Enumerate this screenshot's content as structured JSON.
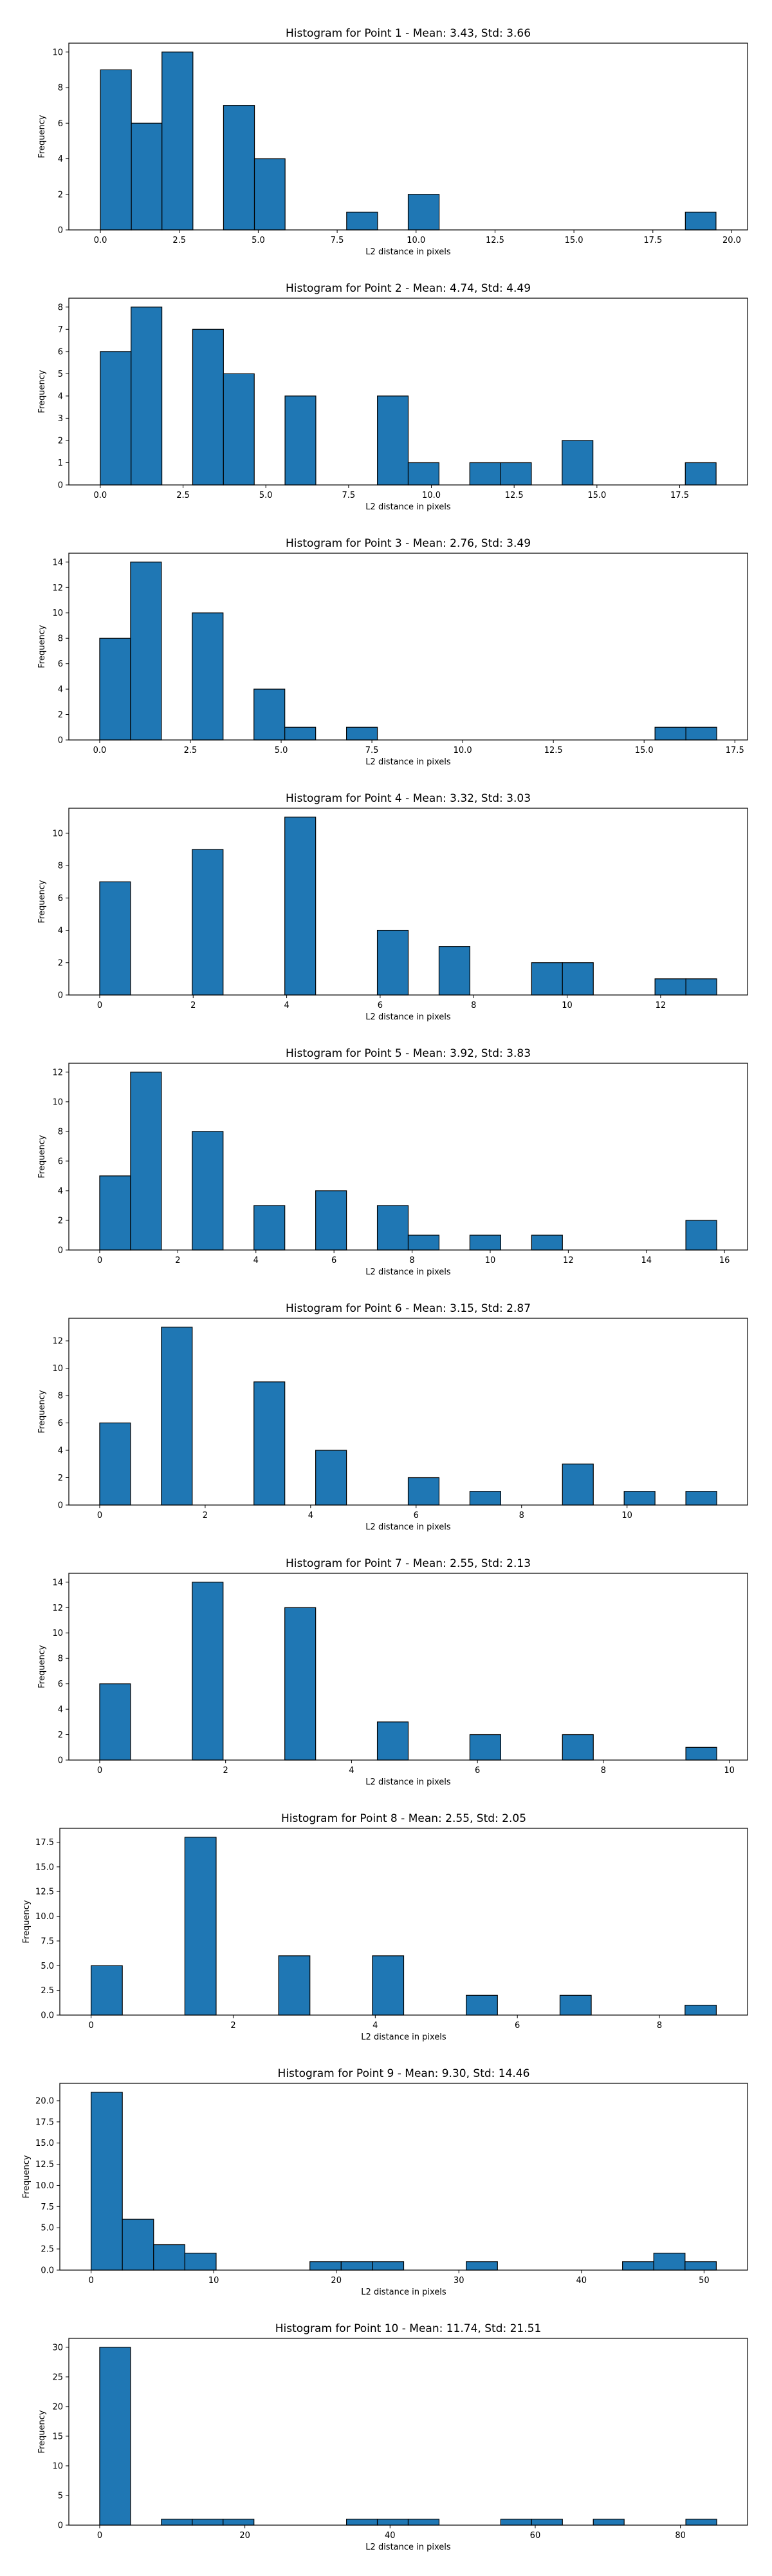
{
  "bar_color": "#1f77b4",
  "edge_color": "#000000",
  "chart_data": [
    {
      "type": "bar",
      "title": "Histogram for Point 1 - Mean: 3.43, Std: 3.66",
      "xlabel": "L2 distance in pixels",
      "ylabel": "Frequency",
      "bin_edges": [
        0.0,
        0.98,
        1.95,
        2.93,
        3.9,
        4.88,
        5.85,
        6.83,
        7.8,
        8.78,
        9.75,
        10.73,
        11.7,
        12.68,
        13.65,
        14.63,
        15.6,
        16.58,
        17.55,
        18.53,
        19.5
      ],
      "values": [
        9,
        6,
        10,
        0,
        7,
        4,
        0,
        0,
        1,
        0,
        2,
        0,
        0,
        0,
        0,
        0,
        0,
        0,
        0,
        1
      ],
      "xlim": [
        -1.0,
        20.5
      ],
      "ylim": [
        0,
        10.5
      ],
      "xticks": [
        0.0,
        2.5,
        5.0,
        7.5,
        10.0,
        12.5,
        15.0,
        17.5,
        20.0
      ],
      "xtick_labels": [
        "0.0",
        "2.5",
        "5.0",
        "7.5",
        "10.0",
        "12.5",
        "15.0",
        "17.5",
        "20.0"
      ],
      "yticks": [
        0,
        2,
        4,
        6,
        8,
        10
      ],
      "ytick_labels": [
        "0",
        "2",
        "4",
        "6",
        "8",
        "10"
      ]
    },
    {
      "type": "bar",
      "title": "Histogram for Point 2 - Mean: 4.74, Std: 4.49",
      "xlabel": "L2 distance in pixels",
      "ylabel": "Frequency",
      "bin_edges": [
        0.0,
        0.93,
        1.86,
        2.79,
        3.72,
        4.65,
        5.58,
        6.51,
        7.44,
        8.37,
        9.3,
        10.23,
        11.16,
        12.09,
        13.02,
        13.95,
        14.88,
        15.81,
        16.74,
        17.67,
        18.6
      ],
      "values": [
        6,
        8,
        0,
        7,
        5,
        0,
        4,
        0,
        0,
        4,
        1,
        0,
        1,
        1,
        0,
        2,
        0,
        0,
        0,
        1
      ],
      "xlim": [
        -0.95,
        19.55
      ],
      "ylim": [
        0,
        8.4
      ],
      "xticks": [
        0.0,
        2.5,
        5.0,
        7.5,
        10.0,
        12.5,
        15.0,
        17.5
      ],
      "xtick_labels": [
        "0.0",
        "2.5",
        "5.0",
        "7.5",
        "10.0",
        "12.5",
        "15.0",
        "17.5"
      ],
      "yticks": [
        0,
        1,
        2,
        3,
        4,
        5,
        6,
        7,
        8
      ],
      "ytick_labels": [
        "0",
        "1",
        "2",
        "3",
        "4",
        "5",
        "6",
        "7",
        "8"
      ]
    },
    {
      "type": "bar",
      "title": "Histogram for Point 3 - Mean: 2.76, Std: 3.49",
      "xlabel": "L2 distance in pixels",
      "ylabel": "Frequency",
      "bin_edges": [
        0.0,
        0.85,
        1.7,
        2.55,
        3.4,
        4.25,
        5.1,
        5.95,
        6.8,
        7.65,
        8.5,
        9.35,
        10.2,
        11.05,
        11.9,
        12.75,
        13.6,
        14.45,
        15.3,
        16.15,
        17.0
      ],
      "values": [
        8,
        14,
        0,
        10,
        0,
        4,
        1,
        0,
        1,
        0,
        0,
        0,
        0,
        0,
        0,
        0,
        0,
        0,
        1,
        1
      ],
      "xlim": [
        -0.85,
        17.85
      ],
      "ylim": [
        0,
        14.7
      ],
      "xticks": [
        0.0,
        2.5,
        5.0,
        7.5,
        10.0,
        12.5,
        15.0,
        17.5
      ],
      "xtick_labels": [
        "0.0",
        "2.5",
        "5.0",
        "7.5",
        "10.0",
        "12.5",
        "15.0",
        "17.5"
      ],
      "yticks": [
        0,
        2,
        4,
        6,
        8,
        10,
        12,
        14
      ],
      "ytick_labels": [
        "0",
        "2",
        "4",
        "6",
        "8",
        "10",
        "12",
        "14"
      ]
    },
    {
      "type": "bar",
      "title": "Histogram for Point 4 - Mean: 3.32, Std: 3.03",
      "xlabel": "L2 distance in pixels",
      "ylabel": "Frequency",
      "bin_edges": [
        0.0,
        0.66,
        1.32,
        1.98,
        2.64,
        3.3,
        3.96,
        4.62,
        5.28,
        5.94,
        6.6,
        7.26,
        7.92,
        8.58,
        9.24,
        9.9,
        10.56,
        11.22,
        11.88,
        12.54,
        13.2
      ],
      "values": [
        7,
        0,
        0,
        9,
        0,
        0,
        11,
        0,
        0,
        4,
        0,
        3,
        0,
        0,
        2,
        2,
        0,
        0,
        1,
        1
      ],
      "xlim": [
        -0.66,
        13.86
      ],
      "ylim": [
        0,
        11.55
      ],
      "xticks": [
        0,
        2,
        4,
        6,
        8,
        10,
        12
      ],
      "xtick_labels": [
        "0",
        "2",
        "4",
        "6",
        "8",
        "10",
        "12"
      ],
      "yticks": [
        0,
        2,
        4,
        6,
        8,
        10
      ],
      "ytick_labels": [
        "0",
        "2",
        "4",
        "6",
        "8",
        "10"
      ]
    },
    {
      "type": "bar",
      "title": "Histogram for Point 5 - Mean: 3.92, Std: 3.83",
      "xlabel": "L2 distance in pixels",
      "ylabel": "Frequency",
      "bin_edges": [
        0.0,
        0.79,
        1.58,
        2.37,
        3.16,
        3.95,
        4.74,
        5.53,
        6.32,
        7.11,
        7.9,
        8.69,
        9.48,
        10.27,
        11.06,
        11.85,
        12.64,
        13.43,
        14.22,
        15.01,
        15.8
      ],
      "values": [
        5,
        12,
        0,
        8,
        0,
        3,
        0,
        4,
        0,
        3,
        1,
        0,
        1,
        0,
        1,
        0,
        0,
        0,
        0,
        2
      ],
      "xlim": [
        -0.79,
        16.59
      ],
      "ylim": [
        0,
        12.6
      ],
      "xticks": [
        0,
        2,
        4,
        6,
        8,
        10,
        12,
        14,
        16
      ],
      "xtick_labels": [
        "0",
        "2",
        "4",
        "6",
        "8",
        "10",
        "12",
        "14",
        "16"
      ],
      "yticks": [
        0,
        2,
        4,
        6,
        8,
        10,
        12
      ],
      "ytick_labels": [
        "0",
        "2",
        "4",
        "6",
        "8",
        "10",
        "12"
      ]
    },
    {
      "type": "bar",
      "title": "Histogram for Point 6 - Mean: 3.15, Std: 2.87",
      "xlabel": "L2 distance in pixels",
      "ylabel": "Frequency",
      "bin_edges": [
        0.0,
        0.585,
        1.17,
        1.755,
        2.34,
        2.925,
        3.51,
        4.095,
        4.68,
        5.265,
        5.85,
        6.435,
        7.02,
        7.605,
        8.19,
        8.775,
        9.36,
        9.945,
        10.53,
        11.115,
        11.7
      ],
      "values": [
        6,
        0,
        13,
        0,
        0,
        9,
        0,
        4,
        0,
        0,
        2,
        0,
        1,
        0,
        0,
        3,
        0,
        1,
        0,
        1
      ],
      "xlim": [
        -0.585,
        12.285
      ],
      "ylim": [
        0,
        13.65
      ],
      "xticks": [
        0,
        2,
        4,
        6,
        8,
        10
      ],
      "xtick_labels": [
        "0",
        "2",
        "4",
        "6",
        "8",
        "10"
      ],
      "yticks": [
        0,
        2,
        4,
        6,
        8,
        10,
        12
      ],
      "ytick_labels": [
        "0",
        "2",
        "4",
        "6",
        "8",
        "10",
        "12"
      ]
    },
    {
      "type": "bar",
      "title": "Histogram for Point 7 - Mean: 2.55, Std: 2.13",
      "xlabel": "L2 distance in pixels",
      "ylabel": "Frequency",
      "bin_edges": [
        0.0,
        0.49,
        0.98,
        1.47,
        1.96,
        2.45,
        2.94,
        3.43,
        3.92,
        4.41,
        4.9,
        5.39,
        5.88,
        6.37,
        6.86,
        7.35,
        7.84,
        8.33,
        8.82,
        9.31,
        9.8
      ],
      "values": [
        6,
        0,
        0,
        14,
        0,
        0,
        12,
        0,
        0,
        3,
        0,
        0,
        2,
        0,
        0,
        2,
        0,
        0,
        0,
        1
      ],
      "xlim": [
        -0.49,
        10.29
      ],
      "ylim": [
        0,
        14.7
      ],
      "xticks": [
        0,
        2,
        4,
        6,
        8,
        10
      ],
      "xtick_labels": [
        "0",
        "2",
        "4",
        "6",
        "8",
        "10"
      ],
      "yticks": [
        0,
        2,
        4,
        6,
        8,
        10,
        12,
        14
      ],
      "ytick_labels": [
        "0",
        "2",
        "4",
        "6",
        "8",
        "10",
        "12",
        "14"
      ]
    },
    {
      "type": "bar",
      "title": "Histogram for Point 8 - Mean: 2.55, Std: 2.05",
      "xlabel": "L2 distance in pixels",
      "ylabel": "Frequency",
      "bin_edges": [
        0.0,
        0.44,
        0.88,
        1.32,
        1.76,
        2.2,
        2.64,
        3.08,
        3.52,
        3.96,
        4.4,
        4.84,
        5.28,
        5.72,
        6.16,
        6.6,
        7.04,
        7.48,
        7.92,
        8.36,
        8.8
      ],
      "values": [
        5,
        0,
        0,
        18,
        0,
        0,
        6,
        0,
        0,
        6,
        0,
        0,
        2,
        0,
        0,
        2,
        0,
        0,
        0,
        1
      ],
      "xlim": [
        -0.44,
        9.24
      ],
      "ylim": [
        0,
        18.9
      ],
      "xticks": [
        0,
        2,
        4,
        6,
        8
      ],
      "xtick_labels": [
        "0",
        "2",
        "4",
        "6",
        "8"
      ],
      "yticks": [
        0,
        2.5,
        5.0,
        7.5,
        10.0,
        12.5,
        15.0,
        17.5
      ],
      "ytick_labels": [
        "0.0",
        "2.5",
        "5.0",
        "7.5",
        "10.0",
        "12.5",
        "15.0",
        "17.5"
      ]
    },
    {
      "type": "bar",
      "title": "Histogram for Point 9 - Mean: 9.30, Std: 14.46",
      "xlabel": "L2 distance in pixels",
      "ylabel": "Frequency",
      "bin_edges": [
        0.0,
        2.55,
        5.1,
        7.65,
        10.2,
        12.75,
        15.3,
        17.85,
        20.4,
        22.95,
        25.5,
        28.05,
        30.6,
        33.15,
        35.7,
        38.25,
        40.8,
        43.35,
        45.9,
        48.45,
        51.0
      ],
      "values": [
        21,
        6,
        3,
        2,
        0,
        0,
        0,
        1,
        1,
        1,
        0,
        0,
        1,
        0,
        0,
        0,
        0,
        1,
        2,
        1
      ],
      "xlim": [
        -2.55,
        53.55
      ],
      "ylim": [
        0,
        22.05
      ],
      "xticks": [
        0,
        10,
        20,
        30,
        40,
        50
      ],
      "xtick_labels": [
        "0",
        "10",
        "20",
        "30",
        "40",
        "50"
      ],
      "yticks": [
        0,
        2.5,
        5.0,
        7.5,
        10.0,
        12.5,
        15.0,
        17.5,
        20.0
      ],
      "ytick_labels": [
        "0.0",
        "2.5",
        "5.0",
        "7.5",
        "10.0",
        "12.5",
        "15.0",
        "17.5",
        "20.0"
      ]
    },
    {
      "type": "bar",
      "title": "Histogram for Point 10 - Mean: 11.74, Std: 21.51",
      "xlabel": "L2 distance in pixels",
      "ylabel": "Frequency",
      "bin_edges": [
        0.0,
        4.25,
        8.5,
        12.75,
        17.0,
        21.25,
        25.5,
        29.75,
        34.0,
        38.25,
        42.5,
        46.75,
        51.0,
        55.25,
        59.5,
        63.75,
        68.0,
        72.25,
        76.5,
        80.75,
        85.0
      ],
      "values": [
        30,
        0,
        1,
        1,
        1,
        0,
        0,
        0,
        1,
        1,
        1,
        0,
        0,
        1,
        1,
        0,
        1,
        0,
        0,
        1
      ],
      "xlim": [
        -4.25,
        89.25
      ],
      "ylim": [
        0,
        31.5
      ],
      "xticks": [
        0,
        20,
        40,
        60,
        80
      ],
      "xtick_labels": [
        "0",
        "20",
        "40",
        "60",
        "80"
      ],
      "yticks": [
        0,
        5,
        10,
        15,
        20,
        25,
        30
      ],
      "ytick_labels": [
        "0",
        "5",
        "10",
        "15",
        "20",
        "25",
        "30"
      ]
    }
  ]
}
